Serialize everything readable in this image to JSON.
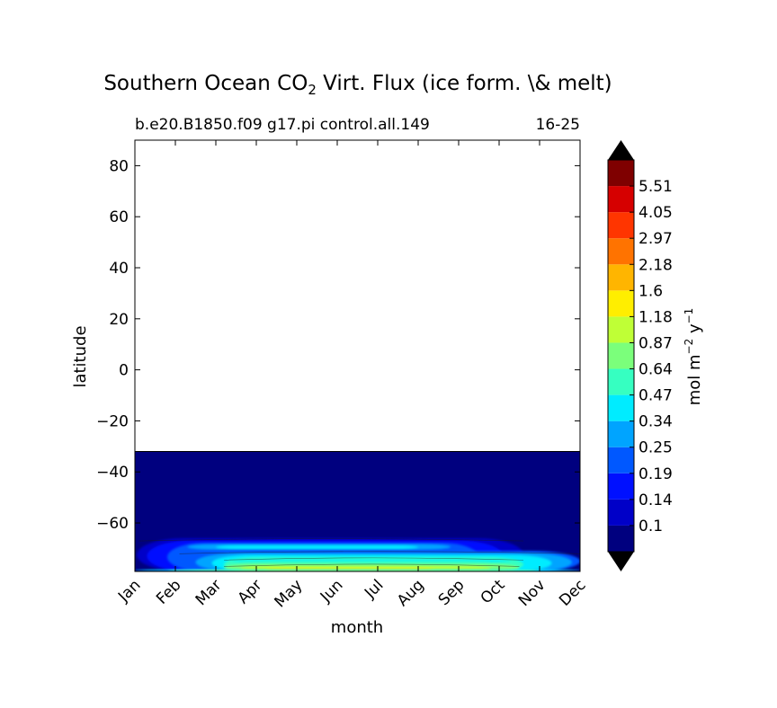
{
  "chart_data": {
    "type": "heatmap",
    "title": "Southern Ocean CO",
    "title_subscript": "2",
    "title_suffix": " Virt. Flux (ice form. \\& melt)",
    "subtitle_left": "b.e20.B1850.f09 g17.pi control.all.149",
    "subtitle_right": "16-25",
    "xlabel": "month",
    "ylabel": "latitude",
    "x_ticks": [
      "Jan",
      "Feb",
      "Mar",
      "Apr",
      "May",
      "Jun",
      "Jul",
      "Aug",
      "Sep",
      "Oct",
      "Nov",
      "Dec"
    ],
    "y_ticks": [
      80,
      60,
      40,
      20,
      0,
      -20,
      -40,
      -60
    ],
    "ylim": [
      -79,
      90
    ],
    "ocean_northern_edge_lat": -32,
    "grid": false,
    "colorbar": {
      "label": "mol m",
      "label_sup1": "−2",
      "label_mid": " y",
      "label_sup2": "−1",
      "tick_labels": [
        "0.1",
        "0.14",
        "0.19",
        "0.25",
        "0.34",
        "0.47",
        "0.64",
        "0.87",
        "1.18",
        "1.6",
        "2.18",
        "2.97",
        "4.05",
        "5.51"
      ],
      "colors": [
        "#00007f",
        "#0000c8",
        "#0010ff",
        "#0058ff",
        "#00a4ff",
        "#00ecff",
        "#36ffc1",
        "#7bff7b",
        "#bfff36",
        "#ffee00",
        "#ffb500",
        "#ff7300",
        "#ff3500",
        "#d60000",
        "#7f0000"
      ],
      "extend_low_color": "#000000",
      "extend_high_color": "#000000"
    }
  }
}
